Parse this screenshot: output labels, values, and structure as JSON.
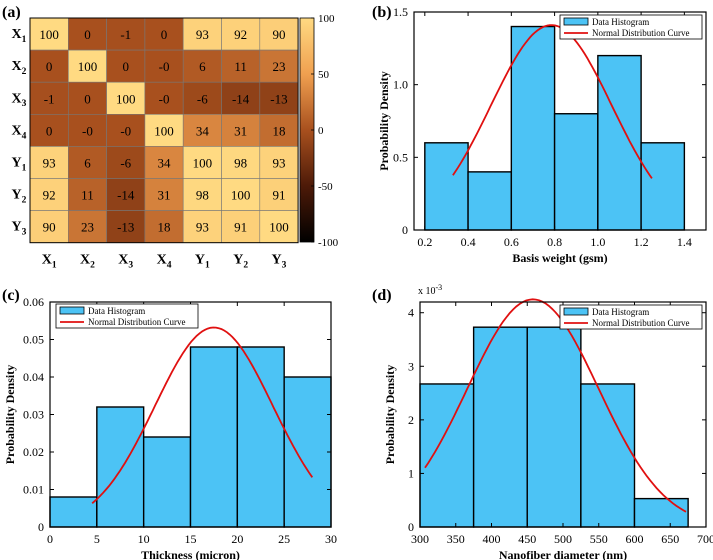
{
  "colors": {
    "bar_fill": "#4cc3f5",
    "bar_stroke": "#000000",
    "curve": "#e01010",
    "legend_bar": "#4cc3f5"
  },
  "chart_data": [
    {
      "id": "a",
      "type": "heatmap",
      "panel_label": "(a)",
      "row_labels": [
        [
          "X",
          "1"
        ],
        [
          "X",
          "2"
        ],
        [
          "X",
          "3"
        ],
        [
          "X",
          "4"
        ],
        [
          "Y",
          "1"
        ],
        [
          "Y",
          "2"
        ],
        [
          "Y",
          "3"
        ]
      ],
      "col_labels": [
        [
          "X",
          "1"
        ],
        [
          "X",
          "2"
        ],
        [
          "X",
          "3"
        ],
        [
          "X",
          "4"
        ],
        [
          "Y",
          "1"
        ],
        [
          "Y",
          "2"
        ],
        [
          "Y",
          "3"
        ]
      ],
      "cells": [
        [
          "100",
          "0",
          "-1",
          "0",
          "93",
          "92",
          "90"
        ],
        [
          "0",
          "100",
          "0",
          "-0",
          "6",
          "11",
          "23"
        ],
        [
          "-1",
          "0",
          "100",
          "-0",
          "-6",
          "-14",
          "-13"
        ],
        [
          "0",
          "-0",
          "-0",
          "100",
          "34",
          "31",
          "18"
        ],
        [
          "93",
          "6",
          "-6",
          "34",
          "100",
          "98",
          "93"
        ],
        [
          "92",
          "11",
          "-14",
          "31",
          "98",
          "100",
          "91"
        ],
        [
          "90",
          "23",
          "-13",
          "18",
          "93",
          "91",
          "100"
        ]
      ],
      "values": [
        [
          100,
          0,
          -1,
          0,
          93,
          92,
          90
        ],
        [
          0,
          100,
          0,
          0,
          6,
          11,
          23
        ],
        [
          -1,
          0,
          100,
          0,
          -6,
          -14,
          -13
        ],
        [
          0,
          0,
          0,
          100,
          34,
          31,
          18
        ],
        [
          93,
          6,
          -6,
          34,
          100,
          98,
          93
        ],
        [
          92,
          11,
          -14,
          31,
          98,
          100,
          91
        ],
        [
          90,
          23,
          -13,
          18,
          93,
          91,
          100
        ]
      ],
      "colorbar_range": [
        -100,
        100
      ],
      "colorbar_ticks": [
        100,
        50,
        0,
        -50,
        -100
      ]
    },
    {
      "id": "b",
      "type": "bar",
      "panel_label": "(b)",
      "xlabel": "Basis weight (gsm)",
      "ylabel": "Probability Density",
      "xlim": [
        0.15,
        1.5
      ],
      "ylim": [
        0,
        1.5
      ],
      "xticks": [
        0.2,
        0.4,
        0.6,
        0.8,
        1.0,
        1.2,
        1.4
      ],
      "xtick_labels": [
        "0.2",
        "0.4",
        "0.6",
        "0.8",
        "1.0",
        "1.2",
        "1.4"
      ],
      "yticks": [
        0,
        0.5,
        1.0,
        1.5
      ],
      "ytick_labels": [
        "0",
        "0.5",
        "1.0",
        "1.5"
      ],
      "bin_edges": [
        0.2,
        0.4,
        0.6,
        0.8,
        1.0,
        1.2,
        1.4
      ],
      "values": [
        0.6,
        0.4,
        1.4,
        0.8,
        1.2,
        0.6
      ],
      "curve": {
        "mean": 0.785,
        "peak": 1.41,
        "sd": 0.28,
        "x_start": 0.33,
        "x_end": 1.25
      },
      "legend": [
        "Data Histogram",
        "Normal Distribution Curve"
      ],
      "exponent_label": ""
    },
    {
      "id": "c",
      "type": "bar",
      "panel_label": "(c)",
      "xlabel": "Thickness (micron)",
      "ylabel": "Probability Density",
      "xlim": [
        0,
        30
      ],
      "ylim": [
        0,
        0.06
      ],
      "xticks": [
        0,
        5,
        10,
        15,
        20,
        25,
        30
      ],
      "xtick_labels": [
        "0",
        "5",
        "10",
        "15",
        "20",
        "25",
        "30"
      ],
      "yticks": [
        0,
        0.01,
        0.02,
        0.03,
        0.04,
        0.05,
        0.06
      ],
      "ytick_labels": [
        "0",
        "0.01",
        "0.02",
        "0.03",
        "0.04",
        "0.05",
        "0.06"
      ],
      "bin_edges": [
        0,
        5,
        10,
        15,
        20,
        25,
        30
      ],
      "values": [
        0.008,
        0.032,
        0.024,
        0.048,
        0.048,
        0.04
      ],
      "curve": {
        "mean": 17.5,
        "peak": 0.0532,
        "sd": 6.3,
        "x_start": 4.5,
        "x_end": 28
      },
      "legend": [
        "Data Histogram",
        "Normal Distribution Curve"
      ],
      "exponent_label": ""
    },
    {
      "id": "d",
      "type": "bar",
      "panel_label": "(d)",
      "xlabel": "Nanofiber diameter (nm)",
      "ylabel": "Probability Density",
      "xlim": [
        300,
        700
      ],
      "ylim": [
        0,
        4.2
      ],
      "xticks": [
        300,
        350,
        400,
        450,
        500,
        550,
        600,
        650,
        700
      ],
      "xtick_labels": [
        "300",
        "350",
        "400",
        "450",
        "500",
        "550",
        "600",
        "650",
        "700"
      ],
      "yticks": [
        0,
        1,
        2,
        3,
        4
      ],
      "ytick_labels": [
        "0",
        "1",
        "2",
        "3",
        "4"
      ],
      "bin_edges": [
        300,
        375,
        450,
        525,
        600,
        675
      ],
      "values": [
        2.67,
        3.73,
        3.73,
        2.67,
        0.53
      ],
      "curve": {
        "mean": 458,
        "peak": 4.25,
        "sd": 92,
        "x_start": 307,
        "x_end": 672
      },
      "legend": [
        "Data Histogram",
        "Normal Distribution Curve"
      ],
      "exponent_label": "x 10",
      "exponent_power": "-3"
    }
  ]
}
